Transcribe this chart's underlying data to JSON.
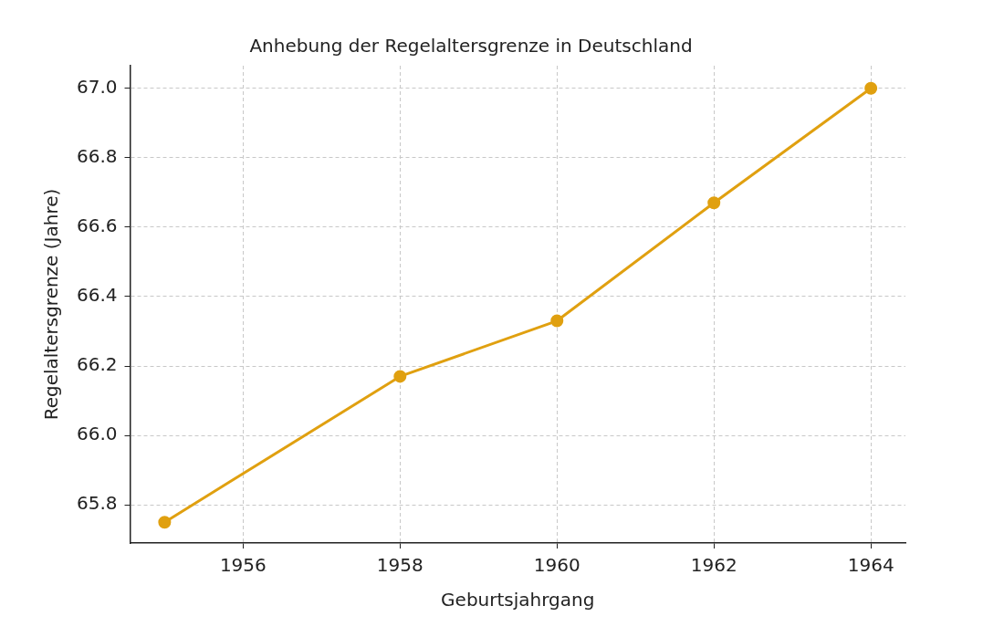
{
  "chart_data": {
    "type": "line",
    "title": "Anhebung der Regelaltersgrenze in Deutschland",
    "xlabel": "Geburtsjahrgang",
    "ylabel": "Regelaltersgrenze (Jahre)",
    "x": [
      1955,
      1958,
      1960,
      1962,
      1964
    ],
    "series": [
      {
        "color": "#e0a010",
        "values": [
          65.75,
          66.17,
          66.33,
          66.67,
          67.0
        ]
      }
    ],
    "xlim": [
      1954.56,
      1964.44
    ],
    "xticks": [
      1956,
      1958,
      1960,
      1962,
      1964
    ],
    "ylim": [
      65.69,
      67.065
    ],
    "yticks": [
      65.8,
      {
        "value": 66.0,
        "label": "66.0"
      },
      66.2,
      66.4,
      66.6,
      66.8,
      {
        "value": 67.0,
        "label": "67.0"
      }
    ],
    "grid": true,
    "legend": false,
    "marker": "circle",
    "line_style": "solid"
  }
}
